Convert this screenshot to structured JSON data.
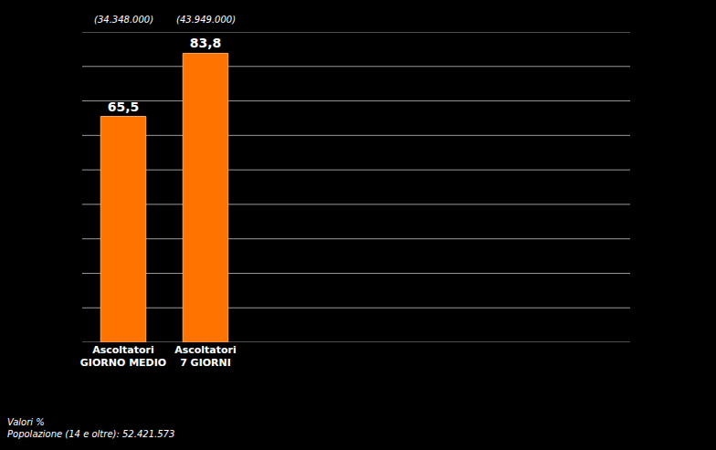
{
  "chart_data": {
    "type": "bar",
    "categories": [
      "Ascoltatori GIORNO MEDIO",
      "Ascoltatori 7 GIORNI"
    ],
    "values": [
      65.5,
      83.8
    ],
    "value_labels": [
      "65,5",
      "83,8"
    ],
    "count_labels": [
      "(34.348.000)",
      "(43.949.000)"
    ],
    "color": "#ff7400",
    "ylim": [
      0,
      90
    ],
    "yticks": [
      0,
      10,
      20,
      30,
      40,
      50,
      60,
      70,
      80,
      90
    ],
    "grid": true,
    "tick_labels": "x",
    "data_labels": true,
    "footnotes": [
      "Valori %",
      "Popolazione (14 e oltre): 52.421.573"
    ]
  }
}
